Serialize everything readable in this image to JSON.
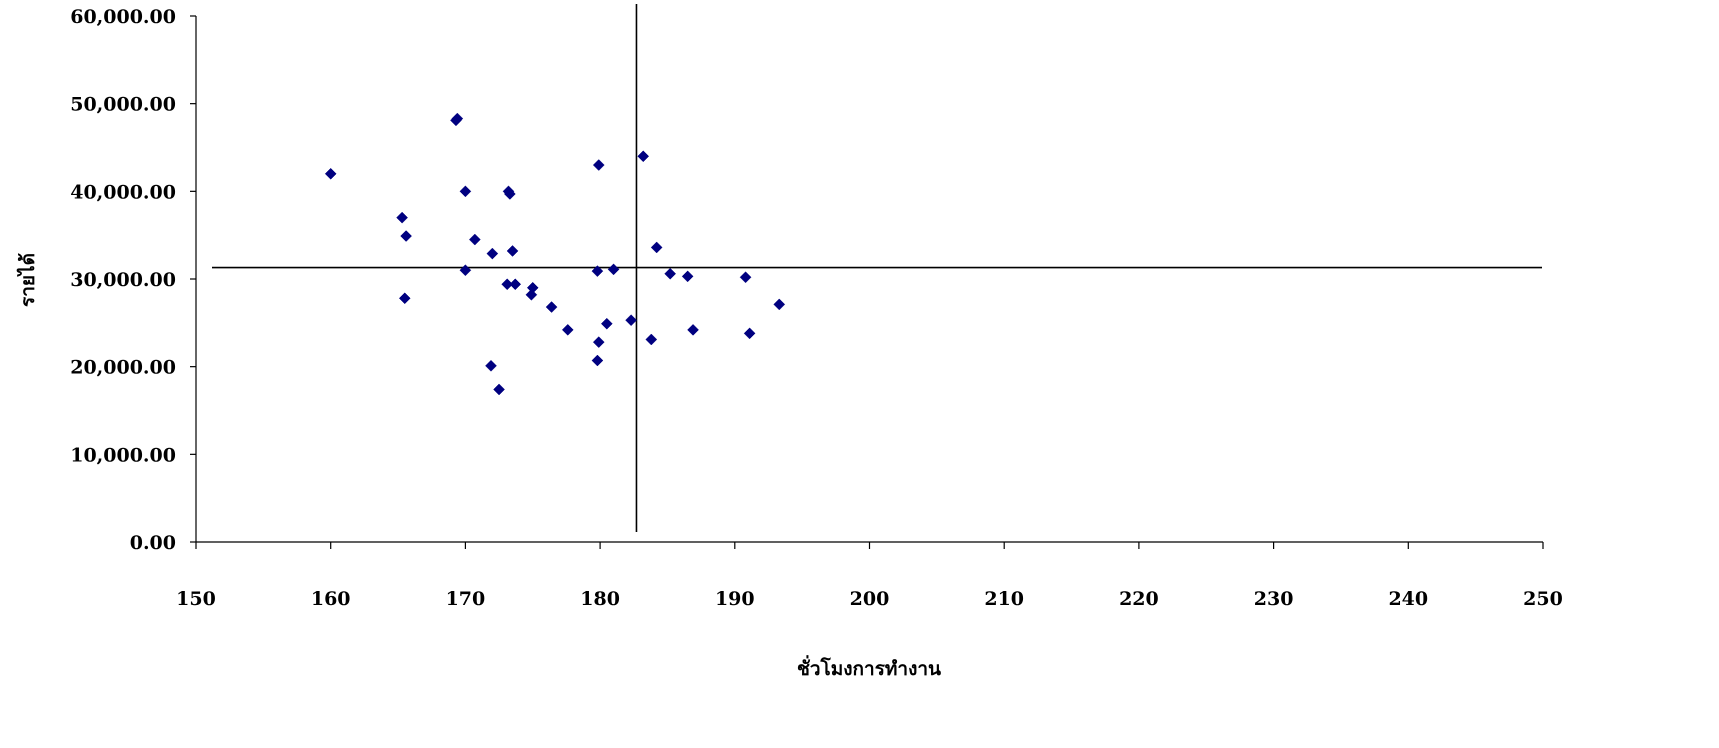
{
  "chart_data": {
    "type": "scatter",
    "title": "",
    "xlabel": "ชั่วโมงการทำงาน",
    "ylabel": "รายได้",
    "xlim": [
      150,
      250
    ],
    "ylim": [
      0,
      60000
    ],
    "x_ticks": [
      "150",
      "160",
      "170",
      "180",
      "190",
      "200",
      "210",
      "220",
      "230",
      "240",
      "250"
    ],
    "y_ticks": [
      "0.00",
      "10,000.00",
      "20,000.00",
      "30,000.00",
      "40,000.00",
      "50,000.00",
      "60,000.00"
    ],
    "grid": false,
    "legend": "none",
    "marker": "diamond",
    "marker_color": "#000080",
    "reference_lines": {
      "vertical_x": 182.7,
      "horizontal_y": 31300
    },
    "series": [
      {
        "points": [
          {
            "x": 160.0,
            "y": 42000
          },
          {
            "x": 165.3,
            "y": 37000
          },
          {
            "x": 165.6,
            "y": 34900
          },
          {
            "x": 165.5,
            "y": 27800
          },
          {
            "x": 169.3,
            "y": 48100
          },
          {
            "x": 169.4,
            "y": 48300
          },
          {
            "x": 170.0,
            "y": 40000
          },
          {
            "x": 170.0,
            "y": 31000
          },
          {
            "x": 170.7,
            "y": 34500
          },
          {
            "x": 172.0,
            "y": 32900
          },
          {
            "x": 171.9,
            "y": 20100
          },
          {
            "x": 172.5,
            "y": 17400
          },
          {
            "x": 173.2,
            "y": 40000
          },
          {
            "x": 173.3,
            "y": 39700
          },
          {
            "x": 173.5,
            "y": 33200
          },
          {
            "x": 173.1,
            "y": 29400
          },
          {
            "x": 173.7,
            "y": 29400
          },
          {
            "x": 175.0,
            "y": 29000
          },
          {
            "x": 174.9,
            "y": 28200
          },
          {
            "x": 176.4,
            "y": 26800
          },
          {
            "x": 177.6,
            "y": 24200
          },
          {
            "x": 179.9,
            "y": 43000
          },
          {
            "x": 179.8,
            "y": 30900
          },
          {
            "x": 179.9,
            "y": 22800
          },
          {
            "x": 179.8,
            "y": 20700
          },
          {
            "x": 180.5,
            "y": 24900
          },
          {
            "x": 181.0,
            "y": 31100
          },
          {
            "x": 182.3,
            "y": 25300
          },
          {
            "x": 183.2,
            "y": 44000
          },
          {
            "x": 183.8,
            "y": 23100
          },
          {
            "x": 184.2,
            "y": 33600
          },
          {
            "x": 185.2,
            "y": 30600
          },
          {
            "x": 186.5,
            "y": 30300
          },
          {
            "x": 186.9,
            "y": 24200
          },
          {
            "x": 190.8,
            "y": 30200
          },
          {
            "x": 191.1,
            "y": 23800
          },
          {
            "x": 193.3,
            "y": 27100
          }
        ]
      }
    ]
  }
}
